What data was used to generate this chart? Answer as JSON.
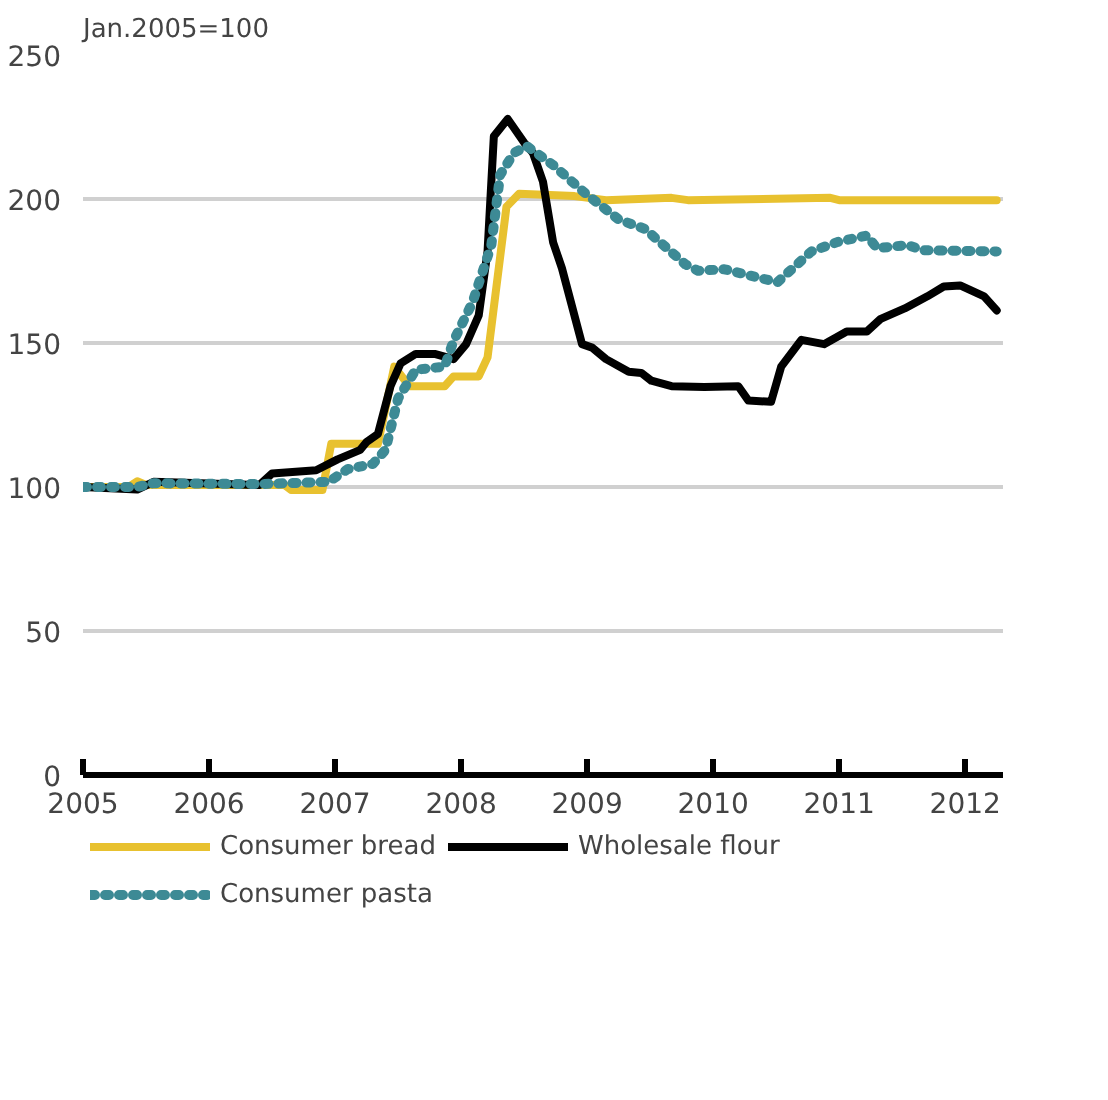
{
  "chart_data": {
    "type": "line",
    "ylabel": "Jan.2005=100",
    "xlim": [
      2005,
      2012.3
    ],
    "xticks": [
      2005,
      2006,
      2007,
      2008,
      2009,
      2010,
      2011,
      2012
    ],
    "ylim": [
      0,
      250
    ],
    "yticks": [
      0,
      50,
      100,
      150,
      200,
      250
    ],
    "grid": "y",
    "legend": "bottom",
    "marker": "none",
    "series": [
      {
        "name": "Consumer bread",
        "color": "#e8c12f",
        "line_style": "solid",
        "x": [
          2005,
          2005.36,
          2005.43,
          2005.5,
          2006.6,
          2006.65,
          2006.9,
          2006.97,
          2007.34,
          2007.47,
          2007.59,
          2007.87,
          2007.94,
          2008.14,
          2008.21,
          2008.36,
          2008.46,
          2008.9,
          2009.15,
          2009.67,
          2009.8,
          2010.93,
          2011.0,
          2012.25
        ],
        "values": [
          100,
          100,
          102,
          100.7,
          100.7,
          99,
          99,
          115,
          115,
          141.8,
          135,
          135,
          138.4,
          138.4,
          145,
          197.3,
          201.8,
          201,
          199.6,
          200.4,
          199.6,
          200.4,
          199.6,
          199.6
        ]
      },
      {
        "name": "Wholesale flour",
        "color": "#000000",
        "line_style": "solid",
        "x": [
          2005,
          2005.43,
          2005.56,
          2006.4,
          2006.5,
          2006.85,
          2007.02,
          2007.2,
          2007.25,
          2007.34,
          2007.44,
          2007.52,
          2007.64,
          2007.79,
          2007.94,
          2008.04,
          2008.14,
          2008.21,
          2008.26,
          2008.37,
          2008.5,
          2008.57,
          2008.65,
          2008.73,
          2008.8,
          2008.96,
          2009.04,
          2009.15,
          2009.33,
          2009.43,
          2009.51,
          2009.67,
          2009.93,
          2010.2,
          2010.28,
          2010.46,
          2010.54,
          2010.7,
          2010.88,
          2011.06,
          2011.22,
          2011.33,
          2011.52,
          2011.7,
          2011.83,
          2011.96,
          2012.15,
          2012.25
        ],
        "values": [
          100,
          99.1,
          101.8,
          100.7,
          104.7,
          105.8,
          109.6,
          112.9,
          115.6,
          118.4,
          135,
          142.9,
          146.2,
          146.2,
          144.4,
          149.6,
          159.6,
          181.8,
          221.8,
          227.8,
          219.6,
          216,
          206,
          185,
          176,
          149.6,
          148.4,
          144.4,
          140,
          139.6,
          136.9,
          135,
          134.7,
          135,
          130,
          129.6,
          141.8,
          151.1,
          149.6,
          154,
          154,
          158.4,
          162,
          166.2,
          169.6,
          170,
          166.2,
          161.3
        ]
      },
      {
        "name": "Consumer pasta",
        "color": "#3d8a95",
        "line_style": "dotted",
        "x": [
          2005,
          2005.43,
          2005.56,
          2006.4,
          2006.95,
          2007.1,
          2007.3,
          2007.4,
          2007.5,
          2007.64,
          2007.87,
          2007.94,
          2008.09,
          2008.24,
          2008.31,
          2008.42,
          2008.52,
          2008.73,
          2008.99,
          2009.25,
          2009.46,
          2009.78,
          2009.88,
          2010.09,
          2010.51,
          2010.78,
          2010.99,
          2011.22,
          2011.3,
          2011.54,
          2011.67,
          2012.25
        ],
        "values": [
          100,
          100,
          101.3,
          101,
          101.8,
          106.2,
          108,
          112.9,
          130.7,
          140.7,
          141.8,
          150.7,
          164,
          184,
          208.4,
          216,
          218.4,
          211.8,
          201.8,
          192.9,
          189.6,
          177.3,
          175.1,
          175.6,
          171.1,
          181.8,
          185.1,
          187.3,
          182.9,
          184,
          182.2,
          181.8
        ]
      }
    ]
  }
}
